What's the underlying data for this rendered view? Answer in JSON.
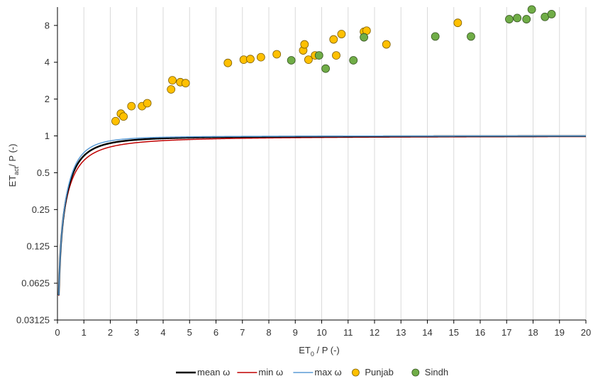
{
  "chart_data": {
    "type": "scatter",
    "xlabel": {
      "main": "ET",
      "sub": "0",
      "rest": " / P (-)"
    },
    "ylabel": {
      "main": "ET",
      "sub": "act",
      "rest": "/ P (-)"
    },
    "xlim": [
      0,
      20
    ],
    "ylim": [
      0.03125,
      11.3
    ],
    "yscale": "log2",
    "x_ticks": [
      0,
      1,
      2,
      3,
      4,
      5,
      6,
      7,
      8,
      9,
      10,
      11,
      12,
      13,
      14,
      15,
      16,
      17,
      18,
      19,
      20
    ],
    "y_ticks": [
      0.03125,
      0.0625,
      0.125,
      0.25,
      0.5,
      1,
      2,
      4,
      8
    ],
    "y_tick_labels": [
      "0.03125",
      "0.0625",
      "0.125",
      "0.25",
      "0.5",
      "1",
      "2",
      "4",
      "8"
    ],
    "grid": "vertical",
    "legend_position": "bottom",
    "series": [
      {
        "name": "mean ω",
        "kind": "line",
        "color": "#000000",
        "omega": 2.55,
        "x": [
          0.05,
          0.1,
          0.15,
          0.2,
          0.3,
          0.4,
          0.5,
          0.6,
          0.8,
          1,
          1.25,
          1.5,
          2,
          2.5,
          3,
          4,
          5,
          6,
          8,
          10,
          12,
          14,
          16,
          18,
          20
        ],
        "y": [
          0.048,
          0.096,
          0.143,
          0.189,
          0.28,
          0.363,
          0.435,
          0.5,
          0.6,
          0.67,
          0.73,
          0.77,
          0.82,
          0.855,
          0.875,
          0.9,
          0.918,
          0.93,
          0.944,
          0.953,
          0.959,
          0.963,
          0.967,
          0.97,
          0.972
        ]
      },
      {
        "name": "min ω",
        "kind": "line",
        "color": "#c00000",
        "omega": 2.2,
        "x": [
          0.05,
          0.1,
          0.15,
          0.2,
          0.3,
          0.4,
          0.5,
          0.6,
          0.8,
          1,
          1.25,
          1.5,
          2,
          2.5,
          3,
          4,
          5,
          6,
          8,
          10,
          12,
          14,
          16,
          18,
          20
        ],
        "y": [
          0.048,
          0.094,
          0.138,
          0.18,
          0.26,
          0.33,
          0.39,
          0.445,
          0.535,
          0.6,
          0.66,
          0.705,
          0.77,
          0.81,
          0.835,
          0.87,
          0.893,
          0.908,
          0.927,
          0.939,
          0.947,
          0.953,
          0.957,
          0.961,
          0.964
        ]
      },
      {
        "name": "max ω",
        "kind": "line",
        "color": "#5b9bd5",
        "omega": 2.9,
        "x": [
          0.05,
          0.1,
          0.15,
          0.2,
          0.3,
          0.4,
          0.5,
          0.6,
          0.8,
          1,
          1.25,
          1.5,
          2,
          2.5,
          3,
          4,
          5,
          6,
          8,
          10,
          12,
          14,
          16,
          18,
          20
        ],
        "y": [
          0.048,
          0.097,
          0.145,
          0.193,
          0.29,
          0.38,
          0.46,
          0.53,
          0.635,
          0.71,
          0.77,
          0.81,
          0.86,
          0.885,
          0.905,
          0.925,
          0.94,
          0.95,
          0.961,
          0.968,
          0.972,
          0.975,
          0.977,
          0.979,
          0.98
        ]
      },
      {
        "name": "Punjab",
        "kind": "points",
        "color": "#ffc000",
        "stroke": "#7f6000",
        "x": [
          2.2,
          2.4,
          2.5,
          2.8,
          3.2,
          3.4,
          4.3,
          4.35,
          4.65,
          4.85,
          6.45,
          7.05,
          7.3,
          7.7,
          8.3,
          9.3,
          9.35,
          9.5,
          9.75,
          10.45,
          10.55,
          10.75,
          11.6,
          11.7,
          12.45,
          15.15
        ],
        "y": [
          1.32,
          1.52,
          1.44,
          1.75,
          1.75,
          1.85,
          2.4,
          2.85,
          2.75,
          2.7,
          3.95,
          4.2,
          4.25,
          4.4,
          4.65,
          5.0,
          5.6,
          4.2,
          4.55,
          6.15,
          4.55,
          6.8,
          7.1,
          7.25,
          5.6,
          8.4
        ]
      },
      {
        "name": "Sindh",
        "kind": "points",
        "color": "#70ad47",
        "stroke": "#385723",
        "x": [
          8.85,
          9.9,
          10.15,
          11.2,
          11.6,
          14.3,
          15.65,
          17.1,
          17.4,
          17.75,
          17.95,
          18.45,
          18.7
        ],
        "y": [
          4.15,
          4.55,
          3.55,
          4.15,
          6.4,
          6.5,
          6.5,
          9.0,
          9.2,
          9.0,
          10.8,
          9.4,
          9.9
        ]
      }
    ]
  }
}
